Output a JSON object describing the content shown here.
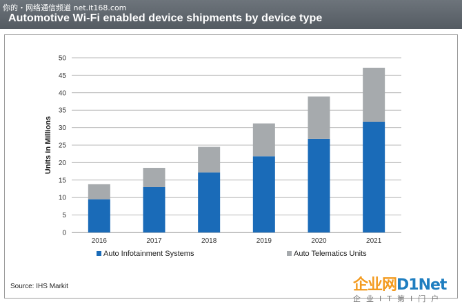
{
  "header": {
    "title": "Automotive Wi-Fi enabled device shipments by device type",
    "watermark": "你的・网络通信频道 net.it168.com"
  },
  "footer": {
    "source": "Source: IHS Markit",
    "logo_text_a": "企业网",
    "logo_text_b": "D1Net",
    "logo_sub_chars": [
      "企",
      "业",
      "I",
      "T",
      "第",
      "I",
      "门",
      "户"
    ]
  },
  "colors": {
    "infotainment": "#1a6bb8",
    "telematics": "#a6aaad",
    "grid": "#b7b7b7",
    "title_bar": "#5e656c"
  },
  "chart_data": {
    "type": "bar",
    "stacked": true,
    "title": "Automotive Wi-Fi enabled device shipments by device type",
    "ylabel": "Units in Millions",
    "xlabel": "",
    "ylim": [
      0,
      50
    ],
    "yticks": [
      0,
      5,
      10,
      15,
      20,
      25,
      30,
      35,
      40,
      45,
      50
    ],
    "grid": true,
    "legend_position": "bottom",
    "categories": [
      "2016",
      "2017",
      "2018",
      "2019",
      "2020",
      "2021"
    ],
    "series": [
      {
        "name": "Auto Infotainment Systems",
        "values": [
          9.5,
          13,
          17.2,
          21.8,
          26.8,
          31.7
        ]
      },
      {
        "name": "Auto Telematics Units",
        "values": [
          4.3,
          5.5,
          7.3,
          9.4,
          12.1,
          15.4
        ]
      }
    ]
  }
}
